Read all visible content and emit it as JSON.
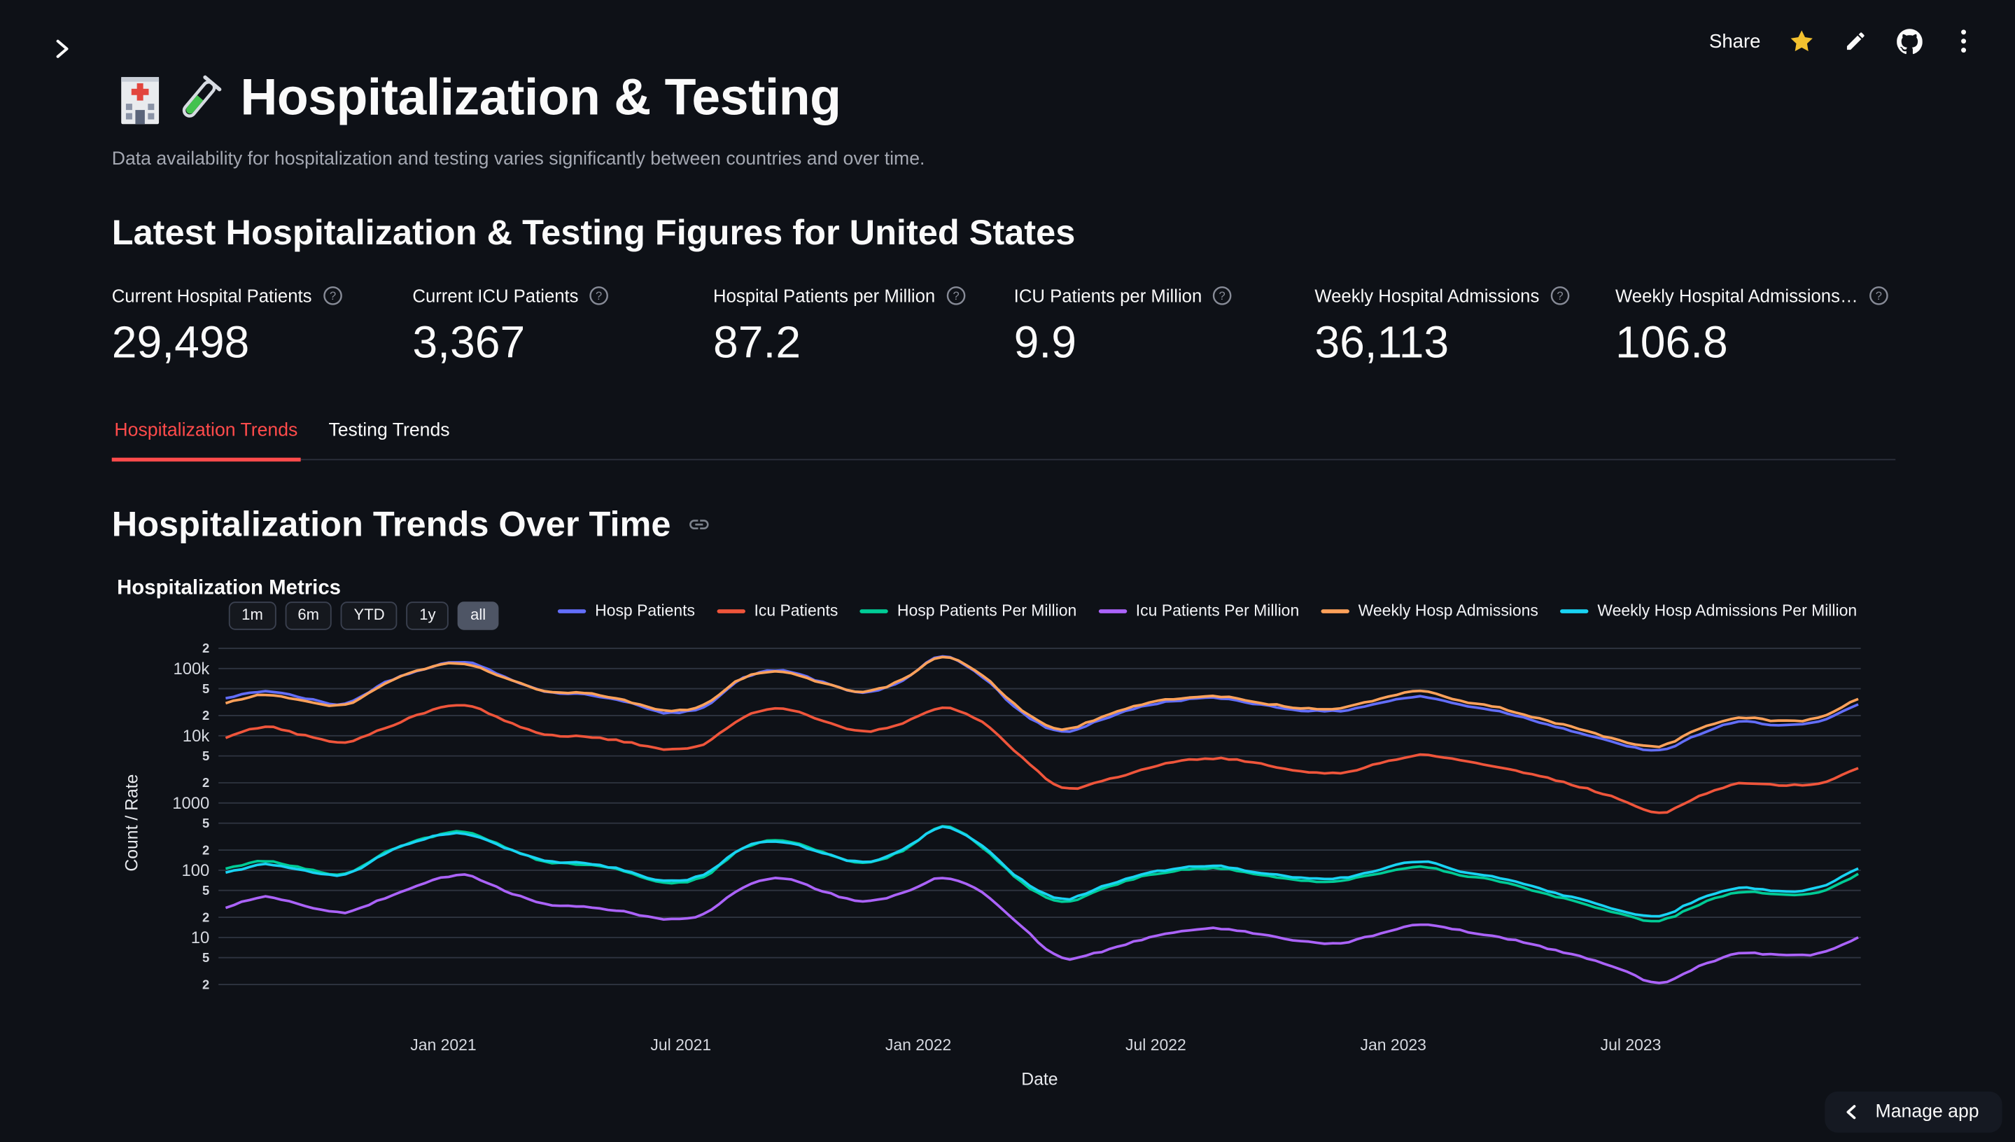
{
  "toolbar": {
    "share_label": "Share"
  },
  "page": {
    "title": "Hospitalization & Testing",
    "subtitle": "Data availability for hospitalization and testing varies significantly between countries and over time.",
    "figures_heading": "Latest Hospitalization & Testing Figures for United States",
    "trends_heading": "Hospitalization Trends Over Time"
  },
  "metrics": [
    {
      "label": "Current Hospital Patients",
      "value": "29,498"
    },
    {
      "label": "Current ICU Patients",
      "value": "3,367"
    },
    {
      "label": "Hospital Patients per Million",
      "value": "87.2"
    },
    {
      "label": "ICU Patients per Million",
      "value": "9.9"
    },
    {
      "label": "Weekly Hospital Admissions",
      "value": "36,113"
    },
    {
      "label": "Weekly Hospital Admissions…",
      "value": "106.8"
    }
  ],
  "tabs": [
    {
      "label": "Hospitalization Trends",
      "active": true
    },
    {
      "label": "Testing Trends",
      "active": false
    }
  ],
  "manage_app_label": "Manage app",
  "chart_data": {
    "type": "line",
    "title": "Hospitalization Metrics",
    "xlabel": "Date",
    "ylabel": "Count / Rate",
    "y_scale": "log",
    "ylim": [
      1,
      250000
    ],
    "grid": true,
    "legend_position": "top",
    "range_buttons": [
      "1m",
      "6m",
      "YTD",
      "1y",
      "all"
    ],
    "active_range_button": "all",
    "x_ticks": [
      "Jan 2021",
      "Jul 2021",
      "Jan 2022",
      "Jul 2022",
      "Jan 2023",
      "Jul 2023"
    ],
    "y_ticks": [
      {
        "label": "2",
        "value": 200000,
        "major": false
      },
      {
        "label": "100k",
        "value": 100000,
        "major": true
      },
      {
        "label": "5",
        "value": 50000,
        "major": false
      },
      {
        "label": "2",
        "value": 20000,
        "major": false
      },
      {
        "label": "10k",
        "value": 10000,
        "major": true
      },
      {
        "label": "5",
        "value": 5000,
        "major": false
      },
      {
        "label": "2",
        "value": 2000,
        "major": false
      },
      {
        "label": "1000",
        "value": 1000,
        "major": true
      },
      {
        "label": "5",
        "value": 500,
        "major": false
      },
      {
        "label": "2",
        "value": 200,
        "major": false
      },
      {
        "label": "100",
        "value": 100,
        "major": true
      },
      {
        "label": "5",
        "value": 50,
        "major": false
      },
      {
        "label": "2",
        "value": 20,
        "major": false
      },
      {
        "label": "10",
        "value": 10,
        "major": true
      },
      {
        "label": "5",
        "value": 5,
        "major": false
      },
      {
        "label": "2",
        "value": 2,
        "major": false
      }
    ],
    "x": [
      "2020-07",
      "2020-08",
      "2020-09",
      "2020-10",
      "2020-11",
      "2020-12",
      "2021-01",
      "2021-02",
      "2021-03",
      "2021-04",
      "2021-05",
      "2021-06",
      "2021-07",
      "2021-08",
      "2021-09",
      "2021-10",
      "2021-11",
      "2021-12",
      "2022-01",
      "2022-02",
      "2022-03",
      "2022-04",
      "2022-05",
      "2022-06",
      "2022-07",
      "2022-08",
      "2022-09",
      "2022-10",
      "2022-11",
      "2022-12",
      "2023-01",
      "2023-02",
      "2023-03",
      "2023-04",
      "2023-05",
      "2023-06",
      "2023-07",
      "2023-08",
      "2023-09",
      "2023-10",
      "2023-11",
      "2023-12"
    ],
    "series": [
      {
        "name": "Hosp Patients",
        "color": "#636efa",
        "values": [
          36000,
          46000,
          36000,
          30000,
          62000,
          100000,
          126000,
          76000,
          46000,
          41000,
          33000,
          22000,
          27000,
          72000,
          93000,
          62000,
          44000,
          66000,
          152000,
          75000,
          22000,
          11500,
          17500,
          27000,
          34000,
          36000,
          29000,
          24000,
          23500,
          31000,
          38000,
          29000,
          23000,
          16000,
          11000,
          7600,
          6000,
          10500,
          16000,
          14500,
          16000,
          29498
        ]
      },
      {
        "name": "Icu Patients",
        "color": "#EF553B",
        "values": [
          9500,
          13500,
          10000,
          8000,
          13000,
          22000,
          28500,
          17000,
          10500,
          9800,
          8200,
          6300,
          7500,
          19000,
          25500,
          16500,
          11500,
          15500,
          26000,
          16000,
          4800,
          1700,
          2100,
          3100,
          4200,
          4600,
          3800,
          3000,
          2800,
          3900,
          5200,
          4300,
          3400,
          2500,
          1750,
          1150,
          700,
          1250,
          1950,
          1850,
          1950,
          3367
        ]
      },
      {
        "name": "Hosp Patients Per Million",
        "color": "#00cc96",
        "values": [
          106.4,
          136.0,
          106.4,
          88.7,
          183.3,
          295.6,
          372.4,
          224.7,
          136.0,
          121.2,
          97.5,
          65.0,
          79.8,
          212.8,
          274.9,
          183.3,
          130.1,
          195.1,
          449.3,
          221.7,
          65.0,
          34.0,
          51.7,
          79.8,
          100.5,
          106.4,
          85.7,
          70.9,
          69.5,
          91.6,
          112.3,
          85.7,
          68.0,
          47.3,
          32.5,
          22.5,
          17.7,
          31.0,
          47.3,
          42.9,
          47.3,
          87.2
        ]
      },
      {
        "name": "Icu Patients Per Million",
        "color": "#ab63fa",
        "values": [
          28.1,
          39.9,
          29.6,
          23.6,
          38.4,
          65.0,
          84.2,
          50.3,
          31.0,
          29.0,
          24.2,
          18.6,
          22.2,
          56.2,
          75.4,
          48.8,
          34.0,
          45.8,
          76.9,
          47.3,
          14.2,
          5.0,
          6.2,
          9.2,
          12.4,
          13.6,
          11.2,
          8.9,
          8.3,
          11.5,
          15.4,
          12.7,
          10.1,
          7.4,
          5.2,
          3.4,
          2.1,
          3.7,
          5.8,
          5.5,
          5.8,
          9.9
        ]
      },
      {
        "name": "Weekly Hosp Admissions",
        "color": "#FFA15A",
        "values": [
          31000,
          41000,
          33000,
          29000,
          60000,
          100000,
          118000,
          74000,
          47000,
          43000,
          34000,
          23500,
          29000,
          73000,
          90000,
          61000,
          45000,
          68000,
          148000,
          78000,
          24000,
          12500,
          19000,
          29000,
          36500,
          38500,
          31000,
          26000,
          26000,
          35000,
          46000,
          33000,
          26000,
          18000,
          12500,
          8600,
          7000,
          12500,
          18500,
          16500,
          18500,
          36113
        ]
      },
      {
        "name": "Weekly Hosp Admissions Per Million",
        "color": "#19d3f3",
        "values": [
          91.6,
          121.2,
          97.5,
          85.7,
          177.4,
          295.6,
          348.8,
          218.7,
          138.9,
          127.1,
          100.5,
          69.5,
          85.7,
          215.8,
          266.0,
          180.3,
          133.0,
          201.0,
          437.5,
          230.6,
          70.9,
          37.0,
          56.2,
          85.7,
          107.9,
          113.8,
          91.6,
          76.9,
          76.9,
          103.5,
          136.0,
          97.5,
          76.9,
          53.2,
          37.0,
          25.4,
          20.7,
          37.0,
          54.7,
          48.8,
          54.7,
          106.8
        ]
      }
    ]
  }
}
